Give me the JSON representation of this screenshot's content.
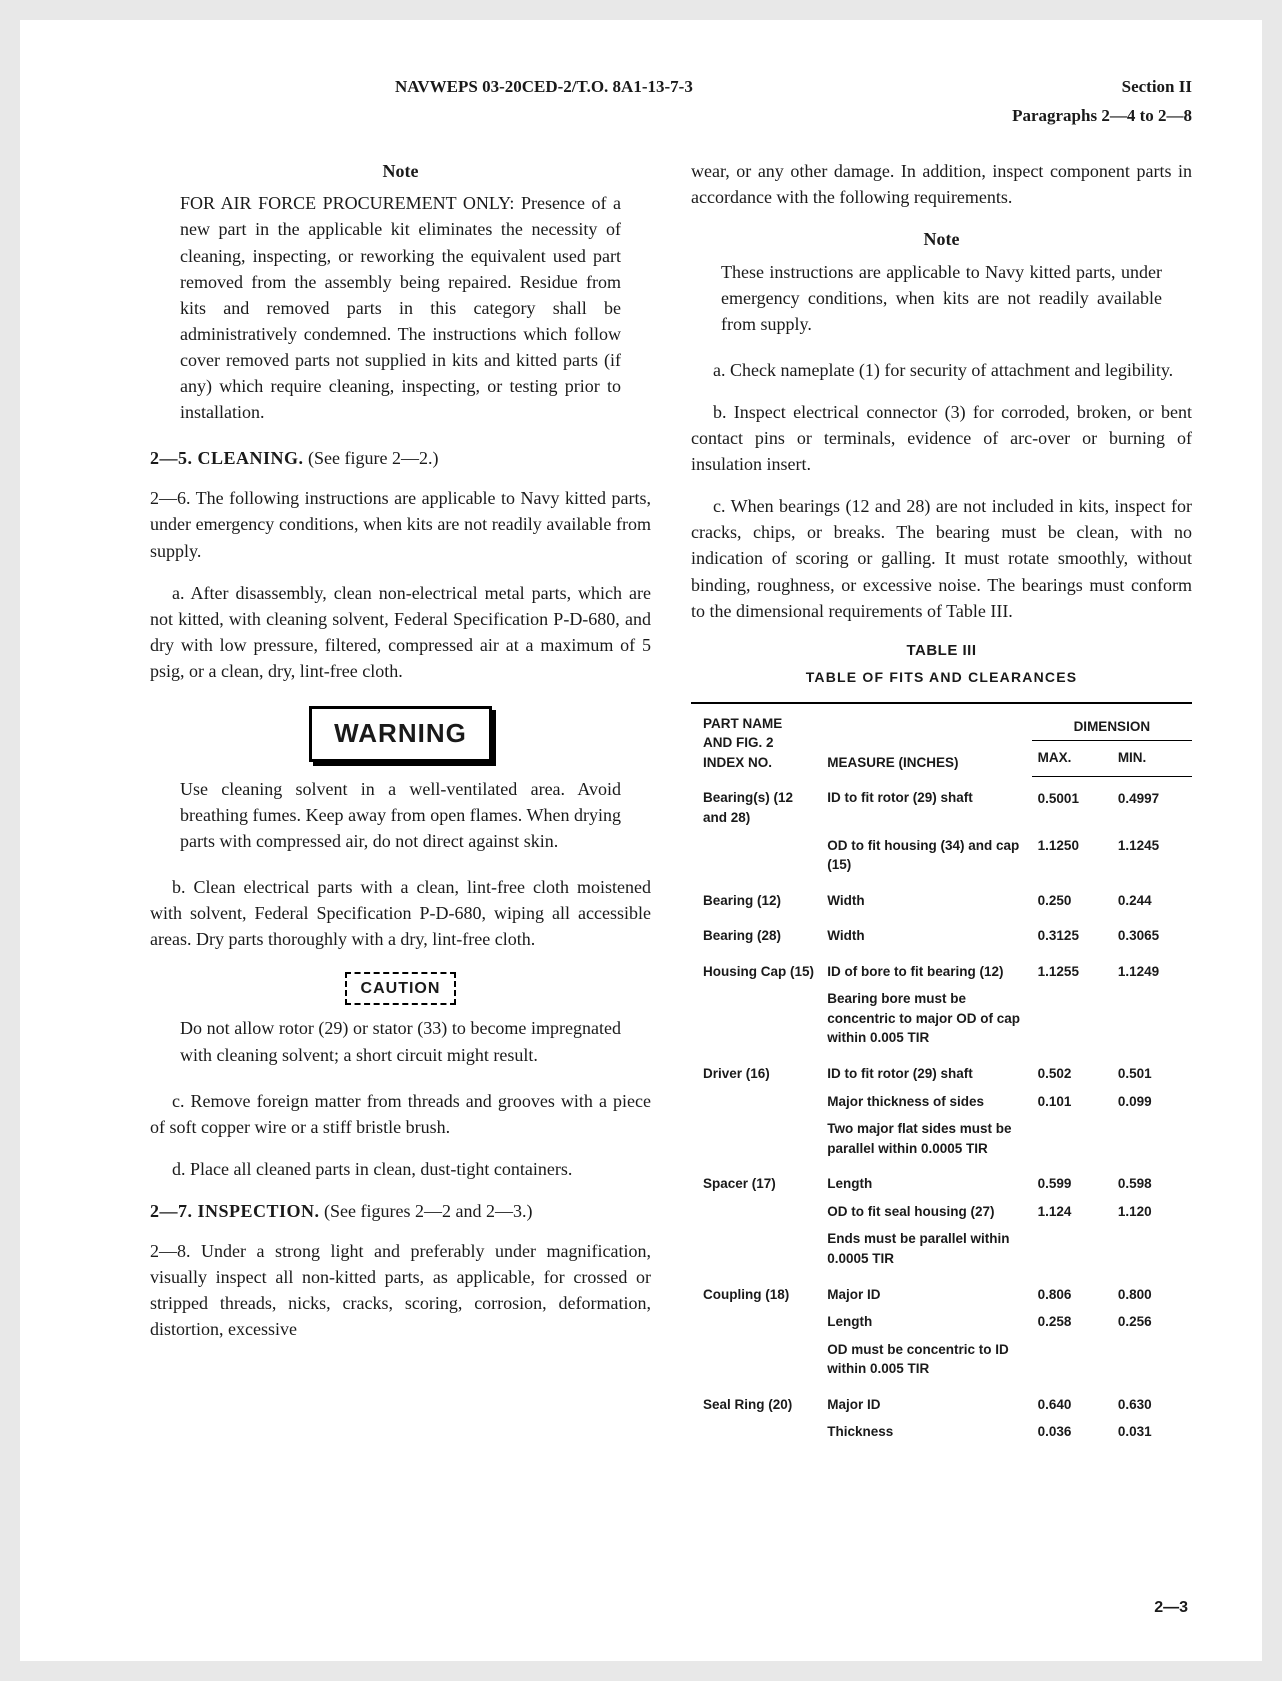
{
  "header": {
    "doc_id": "NAVWEPS 03-20CED-2/T.O. 8A1-13-7-3",
    "section": "Section II",
    "paragraphs": "Paragraphs 2—4 to 2—8"
  },
  "left_col": {
    "note1": {
      "heading": "Note",
      "body": "FOR AIR FORCE PROCUREMENT ONLY: Presence of a new part in the applicable kit eliminates the necessity of cleaning, inspecting, or reworking the equivalent used part removed from the assembly being repaired. Residue from kits and removed parts in this category shall be administratively condemned. The instructions which follow cover removed parts not supplied in kits and kitted parts (if any) which require cleaning, inspecting, or testing prior to installation."
    },
    "s25_heading_num": "2—5.",
    "s25_heading_title": "CLEANING.",
    "s25_heading_ref": "(See figure 2—2.)",
    "p26": "2—6. The following instructions are applicable to Navy kitted parts, under emergency conditions, when kits are not readily available from supply.",
    "p26a": "a. After disassembly, clean non-electrical metal parts, which are not kitted, with cleaning solvent, Federal Specification P-D-680, and dry with low pressure, filtered, compressed air at a maximum of 5 psig, or a clean, dry, lint-free cloth.",
    "warning_label": "WARNING",
    "warning_body": "Use cleaning solvent in a well-ventilated area. Avoid breathing fumes. Keep away from open flames. When drying parts with compressed air, do not direct against skin.",
    "p26b": "b. Clean electrical parts with a clean, lint-free cloth moistened with solvent, Federal Specification P-D-680, wiping all accessible areas. Dry parts thoroughly with a dry, lint-free cloth.",
    "caution_label": "CAUTION",
    "caution_body": "Do not allow rotor (29) or stator (33) to become impregnated with cleaning solvent; a short circuit might result.",
    "p26c": "c. Remove foreign matter from threads and grooves with a piece of soft copper wire or a stiff bristle brush.",
    "p26d": "d. Place all cleaned parts in clean, dust-tight containers.",
    "s27_heading_num": "2—7.",
    "s27_heading_title": "INSPECTION.",
    "s27_heading_ref": "(See figures 2—2 and 2—3.)",
    "p28": "2—8. Under a strong light and preferably under magnification, visually inspect all non-kitted parts, as applicable, for crossed or stripped threads, nicks, cracks, scoring, corrosion, deformation, distortion, excessive"
  },
  "right_col": {
    "p28_cont": "wear, or any other damage. In addition, inspect component parts in accordance with the following requirements.",
    "note2": {
      "heading": "Note",
      "body": "These instructions are applicable to Navy kitted parts, under emergency conditions, when kits are not readily available from supply."
    },
    "pa": "a. Check nameplate (1) for security of attachment and legibility.",
    "pb": "b. Inspect electrical connector (3) for corroded, broken, or bent contact pins or terminals, evidence of arc-over or burning of insulation insert.",
    "pc": "c. When bearings (12 and 28) are not included in kits, inspect for cracks, chips, or breaks. The bearing must be clean, with no indication of scoring or galling. It must rotate smoothly, without binding, roughness, or excessive noise. The bearings must conform to the dimensional requirements of Table III.",
    "table": {
      "title": "TABLE III",
      "subtitle": "TABLE OF FITS AND CLEARANCES",
      "col_headers": {
        "part": "PART NAME AND FIG. 2 INDEX NO.",
        "measure": "MEASURE (INCHES)",
        "dimension": "DIMENSION",
        "max": "MAX.",
        "min": "MIN."
      },
      "rows": [
        {
          "part": "Bearing(s) (12 and 28)",
          "lines": [
            {
              "measure": "ID to fit rotor (29) shaft",
              "max": "0.5001",
              "min": "0.4997"
            },
            {
              "measure": "OD to fit housing (34) and cap (15)",
              "max": "1.1250",
              "min": "1.1245"
            }
          ]
        },
        {
          "part": "Bearing (12)",
          "lines": [
            {
              "measure": "Width",
              "max": "0.250",
              "min": "0.244"
            }
          ]
        },
        {
          "part": "Bearing (28)",
          "lines": [
            {
              "measure": "Width",
              "max": "0.3125",
              "min": "0.3065"
            }
          ]
        },
        {
          "part": "Housing Cap (15)",
          "lines": [
            {
              "measure": "ID of bore to fit bearing (12)",
              "max": "1.1255",
              "min": "1.1249"
            },
            {
              "measure": "Bearing bore must be concentric to major OD of cap within 0.005 TIR",
              "max": "",
              "min": ""
            }
          ]
        },
        {
          "part": "Driver (16)",
          "lines": [
            {
              "measure": "ID to fit rotor (29) shaft",
              "max": "0.502",
              "min": "0.501"
            },
            {
              "measure": "Major thickness of sides",
              "max": "0.101",
              "min": "0.099"
            },
            {
              "measure": "Two major flat sides must be parallel within 0.0005 TIR",
              "max": "",
              "min": ""
            }
          ]
        },
        {
          "part": "Spacer (17)",
          "lines": [
            {
              "measure": "Length",
              "max": "0.599",
              "min": "0.598"
            },
            {
              "measure": "OD to fit seal housing (27)",
              "max": "1.124",
              "min": "1.120"
            },
            {
              "measure": "Ends must be parallel within 0.0005 TIR",
              "max": "",
              "min": ""
            }
          ]
        },
        {
          "part": "Coupling (18)",
          "lines": [
            {
              "measure": "Major ID",
              "max": "0.806",
              "min": "0.800"
            },
            {
              "measure": "Length",
              "max": "0.258",
              "min": "0.256"
            },
            {
              "measure": "OD must be concentric to ID within 0.005 TIR",
              "max": "",
              "min": ""
            }
          ]
        },
        {
          "part": "Seal Ring (20)",
          "lines": [
            {
              "measure": "Major  ID",
              "max": "0.640",
              "min": "0.630"
            },
            {
              "measure": "Thickness",
              "max": "0.036",
              "min": "0.031"
            }
          ]
        }
      ]
    }
  },
  "page_number": "2—3"
}
